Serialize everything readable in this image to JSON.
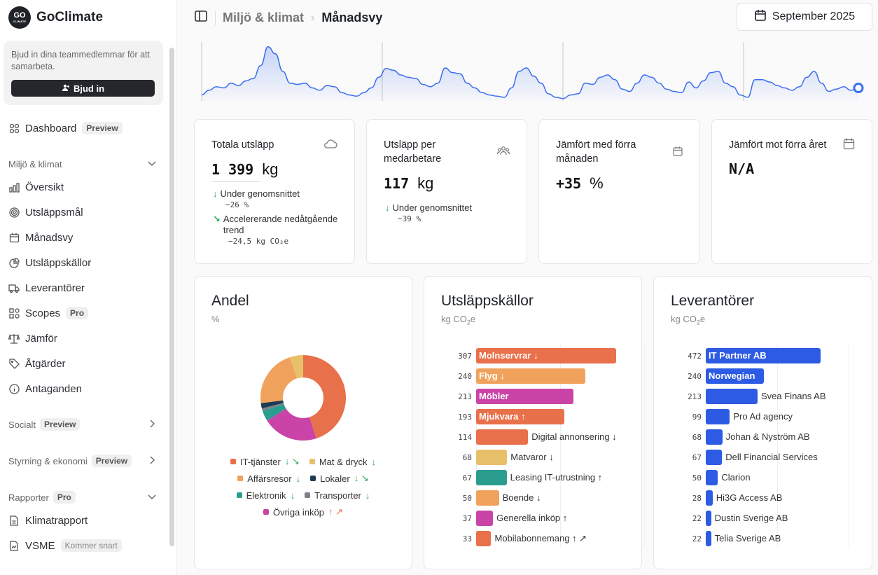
{
  "brand": {
    "name": "GoClimate",
    "logo_text": "GO",
    "logo_sub": "CLIMATE"
  },
  "invite": {
    "text": "Bjud in dina teammedlemmar för att samarbeta.",
    "button": "Bjud in"
  },
  "nav": {
    "dashboard": {
      "label": "Dashboard",
      "badge": "Preview"
    },
    "section_miljo": "Miljö & klimat",
    "items": [
      {
        "label": "Översikt",
        "icon": "bar-chart-icon"
      },
      {
        "label": "Utsläppsmål",
        "icon": "target-icon"
      },
      {
        "label": "Månadsvy",
        "icon": "calendar-icon"
      },
      {
        "label": "Utsläppskällor",
        "icon": "pie-chart-icon"
      },
      {
        "label": "Leverantörer",
        "icon": "truck-icon"
      },
      {
        "label": "Scopes",
        "icon": "scopes-icon",
        "badge": "Pro"
      },
      {
        "label": "Jämför",
        "icon": "scale-icon"
      },
      {
        "label": "Åtgärder",
        "icon": "tag-icon"
      },
      {
        "label": "Antaganden",
        "icon": "info-icon"
      }
    ],
    "section_socialt": {
      "label": "Socialt",
      "badge": "Preview"
    },
    "section_styrning": {
      "label": "Styrning & ekonomi",
      "badge": "Preview"
    },
    "section_rapporter": {
      "label": "Rapporter",
      "badge": "Pro"
    },
    "reports": [
      {
        "label": "Klimatrapport",
        "icon": "document-icon"
      },
      {
        "label": "VSME",
        "icon": "document-chart-icon",
        "badge": "Kommer snart"
      }
    ]
  },
  "header": {
    "crumb1": "Miljö & klimat",
    "crumb2": "Månadsvy",
    "date": "September 2025"
  },
  "stats": [
    {
      "title": "Totala utsläpp",
      "value": "1 399",
      "unit": "kg",
      "icon": "cloud-icon",
      "trends": [
        {
          "arrow": "↓",
          "text": "Under genomsnittet",
          "sub": "−26 %"
        },
        {
          "arrow": "↘",
          "text": "Accelererande nedåtgående trend",
          "sub": "−24,5 kg CO₂e"
        }
      ]
    },
    {
      "title": "Utsläpp per medarbetare",
      "value": "117",
      "unit": "kg",
      "icon": "users-icon",
      "trends": [
        {
          "arrow": "↓",
          "text": "Under genomsnittet",
          "sub": "−39 %"
        }
      ]
    },
    {
      "title": "Jämfört med förra månaden",
      "value": "+35",
      "unit": "%",
      "icon": "calendar-icon",
      "trends": []
    },
    {
      "title": "Jämfört mot förra året",
      "value": "N/A",
      "unit": "",
      "icon": "calendar-icon",
      "trends": []
    }
  ],
  "andel": {
    "title": "Andel",
    "subtitle": "%",
    "legend": [
      [
        {
          "label": "IT-tjänster",
          "color": "#e8704a",
          "marks": "↓ ↘",
          "dir": "down"
        },
        {
          "label": "Mat & dryck",
          "color": "#e8c06a",
          "marks": "↓",
          "dir": "down"
        }
      ],
      [
        {
          "label": "Affärsresor",
          "color": "#f0a25c",
          "marks": "↓",
          "dir": "down"
        },
        {
          "label": "Lokaler",
          "color": "#1e3a52",
          "marks": "↓ ↘",
          "dir": "down"
        }
      ],
      [
        {
          "label": "Elektronik",
          "color": "#2a9d8f",
          "marks": "↓",
          "dir": "down"
        },
        {
          "label": "Transporter",
          "color": "#7a8088",
          "marks": "↓",
          "dir": "down"
        }
      ],
      [
        {
          "label": "Övriga inköp",
          "color": "#c944a6",
          "marks": "↑ ↗",
          "dir": "up"
        }
      ]
    ]
  },
  "chart_data": [
    {
      "type": "pie",
      "title": "Andel",
      "ylabel": "%",
      "categories": [
        "IT-tjänster",
        "Övriga inköp",
        "Elektronik",
        "Transporter",
        "Lokaler",
        "Affärsresor",
        "Mat & dryck"
      ],
      "values": [
        45,
        21,
        4,
        1,
        2,
        22,
        5
      ],
      "colors": [
        "#e8704a",
        "#c944a6",
        "#2a9d8f",
        "#7a8088",
        "#1e3a52",
        "#f0a25c",
        "#e8c06a"
      ]
    },
    {
      "type": "bar",
      "title": "Utsläppskällor",
      "ylabel": "kg CO₂e",
      "categories": [
        "Molnservrar",
        "Flyg",
        "Möbler",
        "Mjukvara",
        "Digital annonsering",
        "Matvaror",
        "Leasing IT-utrustning",
        "Boende",
        "Generella inköp",
        "Mobilabonnemang"
      ],
      "values": [
        307,
        240,
        213,
        193,
        114,
        68,
        67,
        50,
        37,
        33
      ],
      "marks": [
        "↓",
        "↓",
        "",
        "↑",
        "↓",
        "↓",
        "↑",
        "↓",
        "↑",
        "↑ ↗"
      ],
      "colors": [
        "#e8704a",
        "#f0a25c",
        "#c944a6",
        "#e8704a",
        "#e8704a",
        "#e8c06a",
        "#2a9d8f",
        "#f0a25c",
        "#c944a6",
        "#e8704a"
      ]
    },
    {
      "type": "bar",
      "title": "Leverantörer",
      "ylabel": "kg CO₂e",
      "categories": [
        "IT Partner AB",
        "Norwegian",
        "Svea Finans AB",
        "Pro Ad agency",
        "Johan & Nyström AB",
        "Dell Financial Services",
        "Clarion",
        "Hi3G Access AB",
        "Dustin Sverige AB",
        "Telia Sverige AB"
      ],
      "values": [
        472,
        240,
        213,
        99,
        68,
        67,
        50,
        28,
        22,
        22
      ],
      "colors": [
        "#2d5be3"
      ]
    },
    {
      "type": "area",
      "values": [
        10,
        18,
        24,
        22,
        30,
        26,
        34,
        38,
        60,
        92,
        80,
        50,
        30,
        28,
        30,
        22,
        18,
        26,
        24,
        14,
        10,
        8,
        14,
        22,
        40,
        55,
        52,
        44,
        40,
        38,
        28,
        24,
        30,
        56,
        48,
        46,
        30,
        22,
        14,
        10,
        8,
        6,
        22,
        50,
        56,
        42,
        30,
        12,
        6,
        4,
        10,
        12,
        30,
        28,
        40,
        44,
        36,
        20,
        16,
        30,
        44,
        40,
        30,
        20,
        16,
        14,
        32,
        22,
        34,
        48,
        50,
        30,
        24,
        10,
        6,
        36,
        36,
        32,
        26,
        22,
        18,
        24,
        40,
        50,
        30,
        16,
        20,
        24,
        18,
        22
      ]
    }
  ]
}
